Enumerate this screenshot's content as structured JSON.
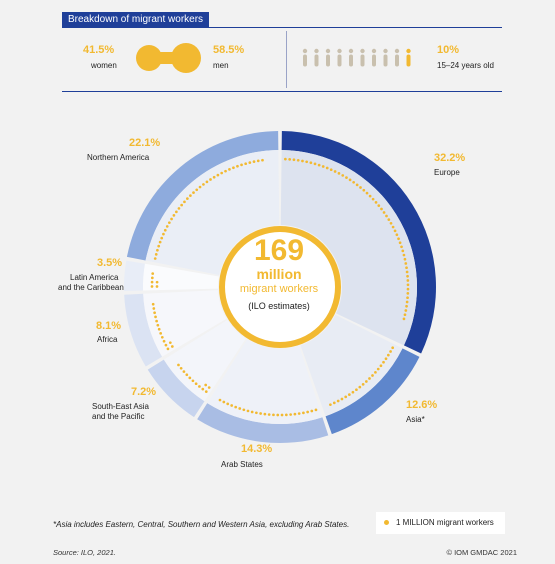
{
  "header": {
    "title": "Breakdown of migrant workers"
  },
  "gender": {
    "women": {
      "value": "41.5%",
      "label": "women"
    },
    "men": {
      "value": "58.5%",
      "label": "men"
    },
    "shape_color": "#f2b931"
  },
  "youth": {
    "value": "10%",
    "label": "15–24 years old",
    "icon": "person-icon",
    "highlight_color": "#f2b931",
    "base_color": "#c9c0ae"
  },
  "center": {
    "number": "169",
    "unit": "million",
    "subtitle": "migrant workers",
    "note": "(ILO estimates)"
  },
  "chart_data": {
    "type": "pie",
    "title": "",
    "total_million": 169,
    "slices": [
      {
        "name": "Europe",
        "value": 32.2,
        "label": "32.2%",
        "outer_color": "#1f3f99",
        "inner_color": "#dde3ef"
      },
      {
        "name": "Asia*",
        "value": 12.6,
        "label": "12.6%",
        "outer_color": "#5e86cc",
        "inner_color": "#e8ecf4"
      },
      {
        "name": "Arab States",
        "value": 14.3,
        "label": "14.3%",
        "outer_color": "#a9bde4",
        "inner_color": "#eef1f8"
      },
      {
        "name": "South-East Asia and the Pacific",
        "value": 7.2,
        "label": "7.2%",
        "outer_color": "#c7d4ee",
        "inner_color": "#f3f5fa"
      },
      {
        "name": "Africa",
        "value": 8.1,
        "label": "8.1%",
        "outer_color": "#dbe3f3",
        "inner_color": "#f6f7fb"
      },
      {
        "name": "Latin America and the Caribbean",
        "value": 3.5,
        "label": "3.5%",
        "outer_color": "#e8edf7",
        "inner_color": "#fafbfd"
      },
      {
        "name": "Northern America",
        "value": 22.1,
        "label": "22.1%",
        "outer_color": "#8eabdd",
        "inner_color": "#eaeef6"
      }
    ]
  },
  "labels": {
    "europe": {
      "value": "32.2%",
      "name": "Europe"
    },
    "asia": {
      "value": "12.6%",
      "name": "Asia*"
    },
    "arab": {
      "value": "14.3%",
      "name": "Arab States"
    },
    "sea": {
      "value": "7.2%",
      "name1": "South-East Asia",
      "name2": "and the Pacific"
    },
    "africa": {
      "value": "8.1%",
      "name": "Africa"
    },
    "latam": {
      "value": "3.5%",
      "name1": "Latin America",
      "name2": "and the Caribbean"
    },
    "namerica": {
      "value": "22.1%",
      "name": "Northern America"
    }
  },
  "legend": {
    "text": "1 MILLION migrant workers",
    "marker_color": "#f2b931"
  },
  "footnote": "*Asia includes Eastern, Central, Southern and Western Asia, excluding Arab States.",
  "source": "Source: ILO, 2021.",
  "copyright": "© IOM GMDAC 2021"
}
